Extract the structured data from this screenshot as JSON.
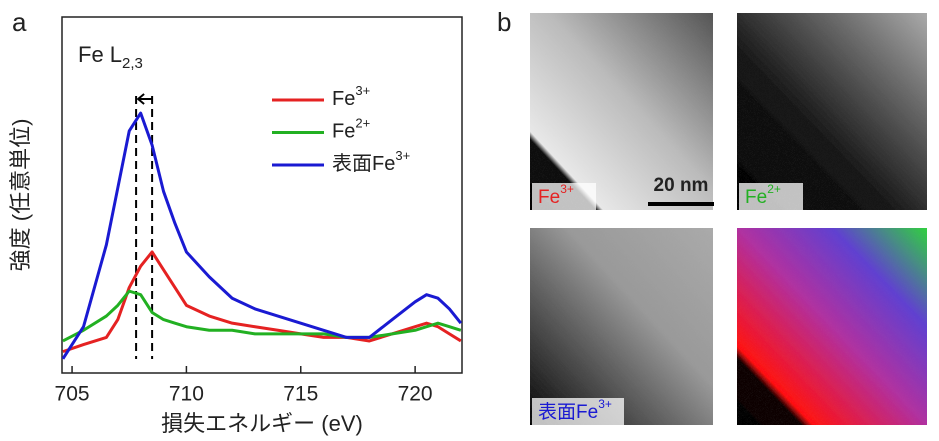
{
  "chart_data": {
    "type": "line",
    "annotation": {
      "text": "Fe L",
      "subscript": "2,3"
    },
    "panel_label": "a",
    "x_label": "損失エネルギー (eV)",
    "y_label": "強度 (任意単位)",
    "x": [
      704.6,
      705.5,
      706.5,
      707,
      707.5,
      708,
      708.5,
      709,
      709.5,
      710,
      711,
      712,
      713,
      714,
      715,
      716,
      717,
      718,
      719,
      720,
      720.5,
      721,
      721.5,
      722
    ],
    "series": [
      {
        "name": "Fe",
        "superscript": "3+",
        "color": "#e52222",
        "values": [
          6,
          8,
          10,
          15,
          24,
          30,
          34,
          29,
          24,
          19,
          16,
          14,
          13,
          12,
          11,
          10,
          10,
          9,
          11,
          13,
          14,
          13,
          11,
          9
        ]
      },
      {
        "name": "Fe",
        "superscript": "2+",
        "color": "#22b022",
        "values": [
          9,
          12,
          16,
          19,
          23,
          22,
          17,
          15,
          14,
          13,
          12,
          12,
          11,
          11,
          11,
          11,
          10,
          10,
          11,
          12,
          13,
          14,
          13,
          12
        ]
      },
      {
        "name": "表面Fe",
        "superscript": "3+",
        "color": "#1a1ad2",
        "values": [
          4,
          13,
          36,
          52,
          68,
          73,
          64,
          51,
          42,
          34,
          27,
          21,
          18,
          16,
          14,
          12,
          10,
          10,
          15,
          20,
          22,
          21,
          18,
          14
        ]
      }
    ],
    "markers": [
      707.8,
      708.5
    ],
    "xlim": [
      704.56,
      722.05
    ],
    "xticks": [
      705,
      710,
      715,
      720
    ],
    "ylim": [
      0,
      100
    ]
  },
  "maps": {
    "panel_label": "b",
    "scale_bar": "20 nm",
    "images": [
      {
        "label": "Fe",
        "superscript": "3+",
        "color": "#e52222"
      },
      {
        "label": "Fe",
        "superscript": "2+",
        "color": "#22b022"
      },
      {
        "label": "表面Fe",
        "superscript": "3+",
        "color": "#1a1ad2"
      }
    ]
  }
}
